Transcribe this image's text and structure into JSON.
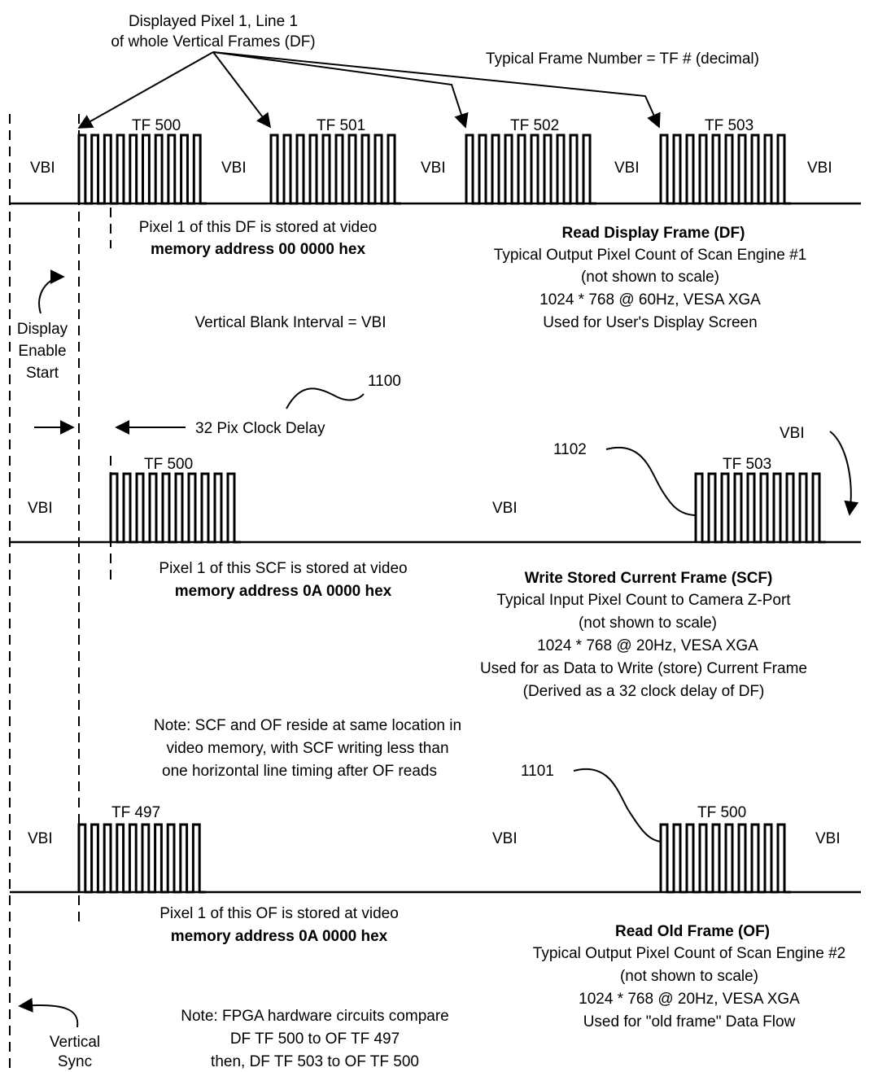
{
  "header": {
    "pixel_line1": "Displayed Pixel 1, Line 1",
    "pixel_line2": "of whole Vertical Frames (DF)",
    "tf_number": "Typical Frame Number = TF # (decimal)"
  },
  "row1": {
    "vbi": [
      "VBI",
      "VBI",
      "VBI",
      "VBI",
      "VBI"
    ],
    "frames": [
      "TF 500",
      "TF 501",
      "TF 502",
      "TF 503"
    ],
    "stored_line1": "Pixel 1 of this DF is stored at video",
    "stored_line2": "memory address 00 0000 hex",
    "desc_title": "Read Display Frame (DF)",
    "desc_lines": [
      "Typical Output Pixel Count of Scan Engine #1",
      "(not shown to scale)",
      "1024 * 768 @ 60Hz, VESA XGA",
      "Used for User's Display Screen"
    ]
  },
  "display_enable": [
    "Display",
    "Enable",
    "Start"
  ],
  "vbi_definition": "Vertical Blank Interval = VBI",
  "ref_1100": "1100",
  "ref_1102": "1102",
  "ref_1101": "1101",
  "clock_delay": "32 Pix Clock Delay",
  "row2": {
    "vbi_left": "VBI",
    "vbi_mid": "VBI",
    "vbi_right": "VBI",
    "frames": [
      "TF 500",
      "TF 503"
    ],
    "stored_line1": "Pixel 1 of this SCF is stored at video",
    "stored_line2": "memory address 0A 0000 hex",
    "desc_title": "Write Stored Current Frame (SCF)",
    "desc_lines": [
      "Typical Input Pixel Count to Camera Z-Port",
      "(not shown to scale)",
      "1024 * 768 @ 20Hz, VESA XGA",
      "Used for as Data to Write (store) Current Frame",
      "(Derived as a 32 clock delay of DF)"
    ]
  },
  "note_scf": [
    "Note: SCF and OF reside at same location in",
    "video memory, with SCF writing less than",
    "one horizontal line timing after OF reads"
  ],
  "row3": {
    "vbi": [
      "VBI",
      "VBI",
      "VBI"
    ],
    "frames": [
      "TF 497",
      "TF 500"
    ],
    "stored_line1": "Pixel 1 of this OF is stored at video",
    "stored_line2": "memory address 0A 0000 hex",
    "desc_title": "Read Old Frame (OF)",
    "desc_lines": [
      "Typical Output Pixel Count of Scan Engine #2",
      "(not shown to scale)",
      "1024 * 768 @ 20Hz, VESA XGA",
      "Used for \"old frame\" Data Flow"
    ]
  },
  "vertical_sync": [
    "Vertical",
    "Sync"
  ],
  "note_fpga": [
    "Note: FPGA hardware circuits compare",
    "DF TF 500  to  OF TF 497",
    "then, DF TF 503  to  OF TF 500"
  ]
}
